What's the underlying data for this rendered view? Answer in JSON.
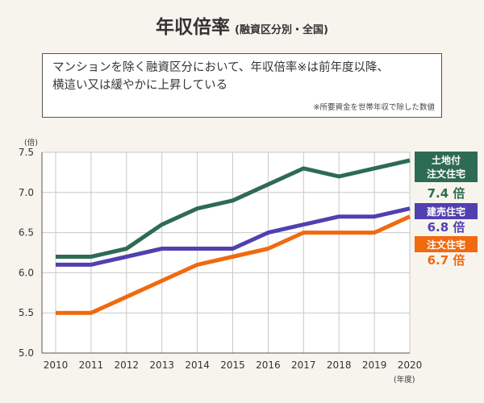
{
  "title": {
    "main": "年収倍率",
    "sub": "(融資区分別・全国)"
  },
  "note": {
    "line1": "マンションを除く融資区分において、年収倍率※は前年度以降、",
    "line2": "横這い又は緩やかに上昇している",
    "footnote": "※所要資金を世帯年収で除した数値"
  },
  "colors": {
    "background": "#f7f4ee",
    "land_order": "#2e6b54",
    "built_sale": "#5040b0",
    "order_house": "#f06a10",
    "grid": "#c8c8c8"
  },
  "chart_data": {
    "type": "line",
    "y_unit": "(倍)",
    "x_unit": "(年度)",
    "x": [
      2010,
      2011,
      2012,
      2013,
      2014,
      2015,
      2016,
      2017,
      2018,
      2019,
      2020
    ],
    "ylim": [
      5.0,
      7.5
    ],
    "yticks": [
      "5.0",
      "5.5",
      "6.0",
      "6.5",
      "7.0",
      "7.5"
    ],
    "grid": true,
    "series": [
      {
        "name": "土地付注文住宅",
        "name_lines": [
          "土地付",
          "注文住宅"
        ],
        "color": "#2e6b54",
        "values": [
          6.2,
          6.2,
          6.3,
          6.6,
          6.8,
          6.9,
          7.1,
          7.3,
          7.2,
          7.3,
          7.4
        ],
        "label_value": "7.4 倍"
      },
      {
        "name": "建売住宅",
        "name_lines": [
          "建売住宅"
        ],
        "color": "#5040b0",
        "values": [
          6.1,
          6.1,
          6.2,
          6.3,
          6.3,
          6.3,
          6.5,
          6.6,
          6.7,
          6.7,
          6.8
        ],
        "label_value": "6.8 倍"
      },
      {
        "name": "注文住宅",
        "name_lines": [
          "注文住宅"
        ],
        "color": "#f06a10",
        "values": [
          5.5,
          5.5,
          5.7,
          5.9,
          6.1,
          6.2,
          6.3,
          6.5,
          6.5,
          6.5,
          6.7
        ],
        "label_value": "6.7 倍"
      }
    ]
  }
}
